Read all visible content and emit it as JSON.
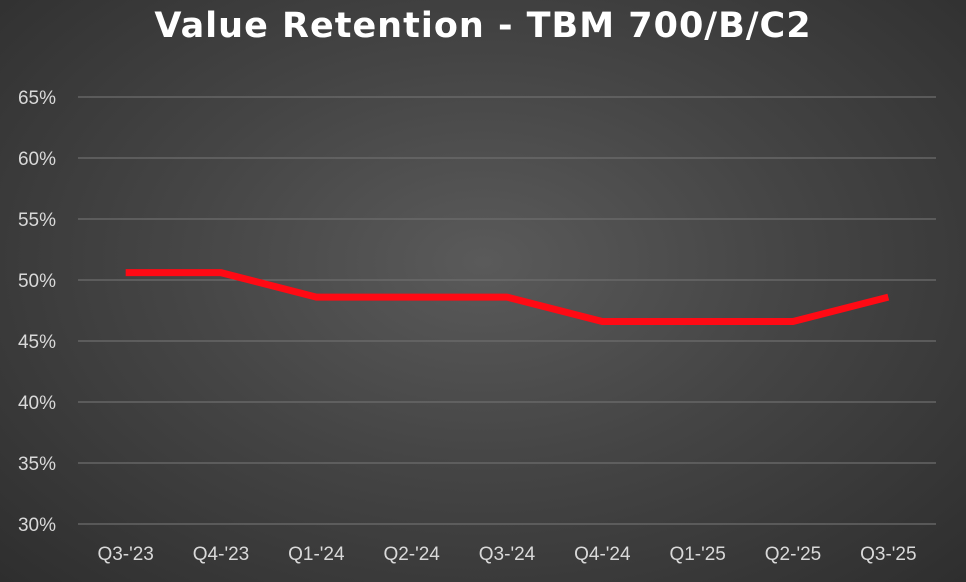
{
  "chart_data": {
    "type": "line",
    "title": "Value Retention - TBM 700/B/C2",
    "categories": [
      "Q3-'23",
      "Q4-'23",
      "Q1-'24",
      "Q2-'24",
      "Q3-'24",
      "Q4-'24",
      "Q1-'25",
      "Q2-'25",
      "Q3-'25"
    ],
    "series": [
      {
        "values": [
          50.6,
          50.6,
          48.6,
          48.6,
          48.6,
          46.6,
          46.6,
          46.6,
          48.6
        ],
        "color": "#ff0a14"
      }
    ],
    "y_ticks": [
      "30%",
      "35%",
      "40%",
      "45%",
      "50%",
      "55%",
      "60%",
      "65%"
    ],
    "ylim": [
      30,
      65
    ],
    "xlabel": "",
    "ylabel": "",
    "grid": true,
    "legend": "none"
  }
}
